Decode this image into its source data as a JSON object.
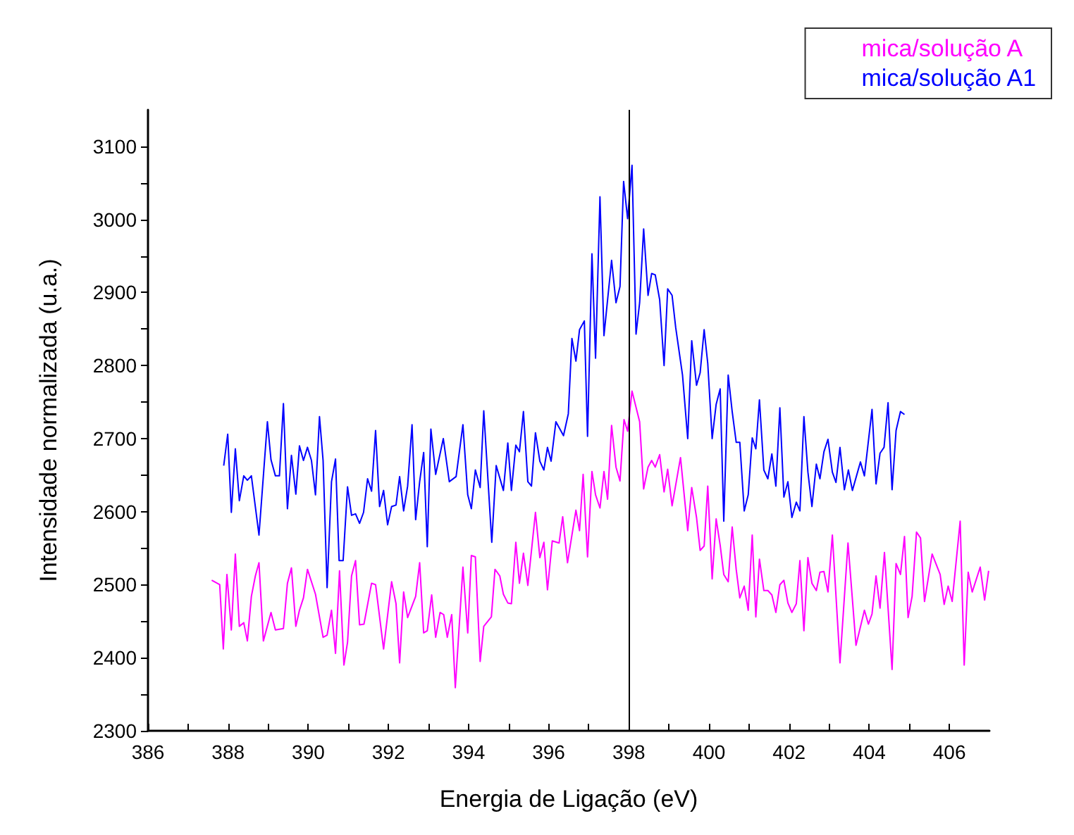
{
  "chart_data": {
    "type": "line",
    "xlabel": "Energia de Ligação (eV)",
    "ylabel": "Intensidade normalizada (u.a.)",
    "xlim": [
      386,
      407
    ],
    "xticks": [
      386,
      388,
      390,
      392,
      394,
      396,
      398,
      400,
      402,
      404,
      406
    ],
    "ylim": [
      2300,
      3150
    ],
    "yticks": [
      2300,
      2400,
      2500,
      2600,
      2700,
      2800,
      2900,
      3000,
      3100
    ],
    "grid": false,
    "legend": "top right",
    "marker": "none",
    "line_style": "solid",
    "ref_lines": [
      {
        "axis": "x",
        "value": 398,
        "color": "#000000"
      }
    ],
    "series": [
      {
        "name": "mica/solução A",
        "color": "#ff00ff",
        "x": [
          387.59,
          387.79,
          387.88,
          387.97,
          388.08,
          388.18,
          388.28,
          388.39,
          388.48,
          388.58,
          388.68,
          388.77,
          388.88,
          389.07,
          389.18,
          389.38,
          389.48,
          389.58,
          389.69,
          389.78,
          389.88,
          389.98,
          390.18,
          390.37,
          390.47,
          390.58,
          390.68,
          390.78,
          390.89,
          390.98,
          391.08,
          391.18,
          391.28,
          391.39,
          391.58,
          391.68,
          391.88,
          392.08,
          392.19,
          392.28,
          392.38,
          392.48,
          392.68,
          392.78,
          392.88,
          392.97,
          393.08,
          393.18,
          393.29,
          393.38,
          393.47,
          393.58,
          393.67,
          393.86,
          393.98,
          394.07,
          394.17,
          394.29,
          394.38,
          394.57,
          394.66,
          394.78,
          394.87,
          394.98,
          395.07,
          395.18,
          395.27,
          395.37,
          395.48,
          395.67,
          395.78,
          395.88,
          395.97,
          396.09,
          396.26,
          396.35,
          396.47,
          396.68,
          396.77,
          396.86,
          396.97,
          397.08,
          397.17,
          397.28,
          397.38,
          397.47,
          397.57,
          397.68,
          397.78,
          397.88,
          397.97,
          398.08,
          398.27,
          398.37,
          398.48,
          398.57,
          398.66,
          398.77,
          398.88,
          398.97,
          399.08,
          399.29,
          399.47,
          399.57,
          399.69,
          399.78,
          399.88,
          399.97,
          400.08,
          400.18,
          400.28,
          400.37,
          400.48,
          400.58,
          400.68,
          400.77,
          400.88,
          400.98,
          401.08,
          401.17,
          401.26,
          401.37,
          401.47,
          401.57,
          401.67,
          401.77,
          401.87,
          401.97,
          402.07,
          402.18,
          402.27,
          402.37,
          402.47,
          402.57,
          402.68,
          402.77,
          402.87,
          402.97,
          403.08,
          403.27,
          403.47,
          403.67,
          403.88,
          403.98,
          404.07,
          404.17,
          404.27,
          404.38,
          404.57,
          404.67,
          404.78,
          404.88,
          404.97,
          405.07,
          405.18,
          405.28,
          405.38,
          405.57,
          405.77,
          405.87,
          405.97,
          406.07,
          406.27,
          406.37,
          406.47,
          406.57,
          406.77,
          406.88,
          406.98
        ],
        "values": [
          2506,
          2500,
          2412,
          2514,
          2438,
          2542,
          2443,
          2448,
          2423,
          2484,
          2512,
          2530,
          2423,
          2462,
          2438,
          2440,
          2502,
          2523,
          2443,
          2465,
          2482,
          2521,
          2487,
          2428,
          2431,
          2465,
          2406,
          2519,
          2390,
          2421,
          2512,
          2533,
          2445,
          2446,
          2502,
          2500,
          2412,
          2504,
          2474,
          2393,
          2490,
          2455,
          2484,
          2530,
          2434,
          2437,
          2486,
          2428,
          2462,
          2459,
          2428,
          2459,
          2359,
          2524,
          2434,
          2540,
          2538,
          2395,
          2443,
          2456,
          2521,
          2512,
          2487,
          2475,
          2474,
          2558,
          2502,
          2543,
          2499,
          2599,
          2537,
          2558,
          2493,
          2560,
          2557,
          2593,
          2530,
          2602,
          2574,
          2651,
          2538,
          2655,
          2623,
          2605,
          2655,
          2617,
          2718,
          2661,
          2642,
          2726,
          2710,
          2765,
          2723,
          2631,
          2661,
          2670,
          2661,
          2678,
          2627,
          2658,
          2608,
          2674,
          2574,
          2633,
          2592,
          2547,
          2553,
          2635,
          2508,
          2590,
          2554,
          2514,
          2504,
          2579,
          2521,
          2482,
          2498,
          2465,
          2568,
          2456,
          2535,
          2492,
          2492,
          2486,
          2462,
          2500,
          2506,
          2475,
          2462,
          2474,
          2533,
          2437,
          2537,
          2502,
          2492,
          2517,
          2518,
          2490,
          2568,
          2393,
          2557,
          2417,
          2465,
          2446,
          2460,
          2512,
          2468,
          2544,
          2384,
          2529,
          2514,
          2566,
          2455,
          2484,
          2572,
          2564,
          2477,
          2542,
          2514,
          2473,
          2498,
          2477,
          2587,
          2390,
          2517,
          2490,
          2524,
          2479,
          2519
        ]
      },
      {
        "name": "mica/solução A1",
        "color": "#0000ff",
        "x": [
          387.89,
          387.99,
          388.08,
          388.18,
          388.28,
          388.39,
          388.48,
          388.58,
          388.77,
          388.98,
          389.07,
          389.18,
          389.28,
          389.38,
          389.48,
          389.58,
          389.69,
          389.78,
          389.88,
          389.98,
          390.08,
          390.18,
          390.28,
          390.37,
          390.47,
          390.58,
          390.68,
          390.77,
          390.87,
          390.98,
          391.08,
          391.18,
          391.28,
          391.38,
          391.48,
          391.58,
          391.68,
          391.78,
          391.88,
          391.98,
          392.08,
          392.19,
          392.28,
          392.38,
          392.48,
          392.59,
          392.68,
          392.78,
          392.88,
          392.97,
          393.06,
          393.18,
          393.37,
          393.52,
          393.69,
          393.86,
          393.98,
          394.07,
          394.17,
          394.29,
          394.38,
          394.58,
          394.69,
          394.87,
          394.98,
          395.07,
          395.18,
          395.27,
          395.37,
          395.48,
          395.57,
          395.67,
          395.78,
          395.88,
          395.97,
          396.06,
          396.18,
          396.37,
          396.49,
          396.58,
          396.68,
          396.77,
          396.89,
          396.97,
          397.08,
          397.17,
          397.28,
          397.38,
          397.57,
          397.68,
          397.78,
          397.87,
          397.97,
          398.08,
          398.18,
          398.27,
          398.37,
          398.48,
          398.57,
          398.66,
          398.77,
          398.88,
          398.97,
          399.08,
          399.17,
          399.34,
          399.47,
          399.57,
          399.69,
          399.78,
          399.88,
          399.97,
          400.08,
          400.18,
          400.28,
          400.37,
          400.48,
          400.58,
          400.68,
          400.77,
          400.88,
          400.98,
          401.08,
          401.17,
          401.26,
          401.37,
          401.47,
          401.57,
          401.67,
          401.77,
          401.87,
          401.97,
          402.07,
          402.18,
          402.27,
          402.37,
          402.47,
          402.57,
          402.68,
          402.77,
          402.87,
          402.97,
          403.08,
          403.17,
          403.27,
          403.38,
          403.48,
          403.58,
          403.78,
          403.88,
          404.07,
          404.17,
          404.27,
          404.37,
          404.47,
          404.57,
          404.67,
          404.78,
          404.88
        ],
        "values": [
          2663,
          2706,
          2599,
          2686,
          2615,
          2649,
          2643,
          2649,
          2568,
          2723,
          2671,
          2649,
          2649,
          2748,
          2604,
          2677,
          2624,
          2690,
          2670,
          2688,
          2670,
          2623,
          2730,
          2670,
          2496,
          2641,
          2672,
          2533,
          2533,
          2634,
          2595,
          2597,
          2584,
          2599,
          2645,
          2628,
          2711,
          2607,
          2629,
          2582,
          2607,
          2609,
          2648,
          2601,
          2635,
          2719,
          2589,
          2641,
          2681,
          2552,
          2713,
          2651,
          2700,
          2641,
          2648,
          2719,
          2623,
          2604,
          2657,
          2633,
          2738,
          2558,
          2663,
          2629,
          2694,
          2629,
          2691,
          2682,
          2737,
          2641,
          2635,
          2708,
          2669,
          2657,
          2688,
          2669,
          2723,
          2704,
          2734,
          2837,
          2806,
          2849,
          2861,
          2703,
          2953,
          2810,
          3031,
          2841,
          2944,
          2886,
          2908,
          3052,
          3001,
          3074,
          2843,
          2886,
          2987,
          2896,
          2926,
          2924,
          2890,
          2800,
          2905,
          2896,
          2852,
          2787,
          2700,
          2834,
          2773,
          2790,
          2849,
          2803,
          2700,
          2747,
          2768,
          2587,
          2787,
          2737,
          2695,
          2695,
          2601,
          2623,
          2701,
          2686,
          2753,
          2657,
          2645,
          2679,
          2635,
          2742,
          2620,
          2641,
          2592,
          2613,
          2601,
          2730,
          2654,
          2607,
          2665,
          2645,
          2682,
          2699,
          2654,
          2640,
          2688,
          2630,
          2657,
          2629,
          2668,
          2649,
          2740,
          2638,
          2680,
          2688,
          2749,
          2630,
          2711,
          2737,
          2733
        ]
      }
    ]
  }
}
